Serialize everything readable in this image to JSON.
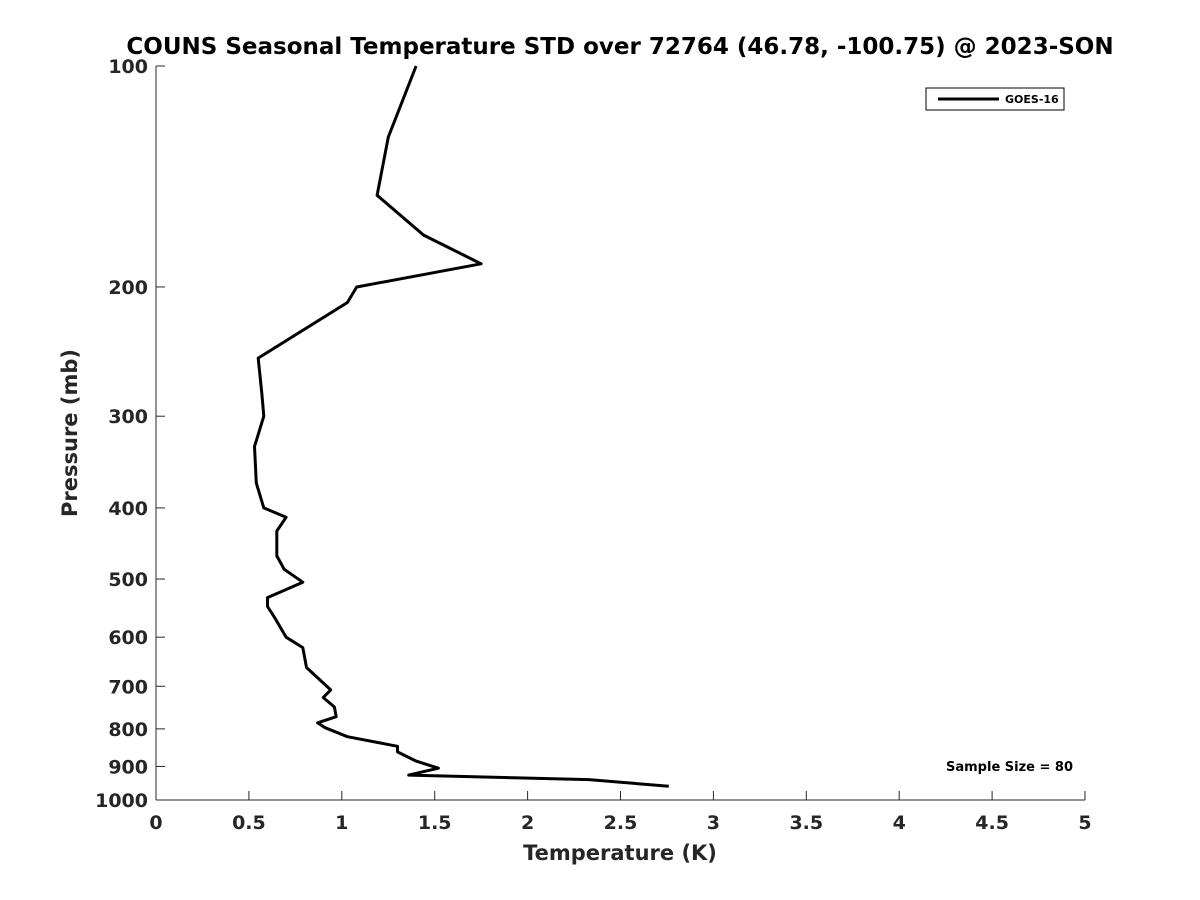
{
  "chart_data": {
    "type": "line",
    "title": "COUNS Seasonal Temperature STD over 72764 (46.78, -100.75) @ 2023-SON",
    "xlabel": "Temperature (K)",
    "ylabel": "Pressure (mb)",
    "xlim": [
      0,
      5
    ],
    "ylim": [
      100,
      1000
    ],
    "yscale": "log",
    "y_reversed": true,
    "xticks": [
      "0",
      "0.5",
      "1",
      "1.5",
      "2",
      "2.5",
      "3",
      "3.5",
      "4",
      "4.5",
      "5"
    ],
    "yticks": [
      "100",
      "200",
      "300",
      "400",
      "500",
      "600",
      "700",
      "800",
      "900",
      "1000"
    ],
    "grid": false,
    "legend_position": "top-right",
    "annotation": "Sample Size = 80",
    "series": [
      {
        "name": "GOES-16",
        "color": "#000000",
        "points": [
          [
            1.4,
            100
          ],
          [
            1.25,
            125
          ],
          [
            1.19,
            150
          ],
          [
            1.44,
            170
          ],
          [
            1.75,
            186
          ],
          [
            1.08,
            200
          ],
          [
            1.03,
            210
          ],
          [
            0.55,
            250
          ],
          [
            0.57,
            280
          ],
          [
            0.58,
            300
          ],
          [
            0.53,
            330
          ],
          [
            0.54,
            370
          ],
          [
            0.58,
            400
          ],
          [
            0.7,
            412
          ],
          [
            0.65,
            430
          ],
          [
            0.65,
            465
          ],
          [
            0.69,
            485
          ],
          [
            0.79,
            505
          ],
          [
            0.6,
            530
          ],
          [
            0.6,
            545
          ],
          [
            0.64,
            565
          ],
          [
            0.7,
            600
          ],
          [
            0.79,
            620
          ],
          [
            0.81,
            660
          ],
          [
            0.94,
            708
          ],
          [
            0.9,
            725
          ],
          [
            0.96,
            747
          ],
          [
            0.97,
            770
          ],
          [
            0.87,
            785
          ],
          [
            0.91,
            797
          ],
          [
            1.03,
            820
          ],
          [
            1.3,
            845
          ],
          [
            1.3,
            860
          ],
          [
            1.4,
            885
          ],
          [
            1.52,
            905
          ],
          [
            1.36,
            925
          ],
          [
            2.33,
            938
          ],
          [
            2.76,
            958
          ]
        ]
      }
    ]
  }
}
